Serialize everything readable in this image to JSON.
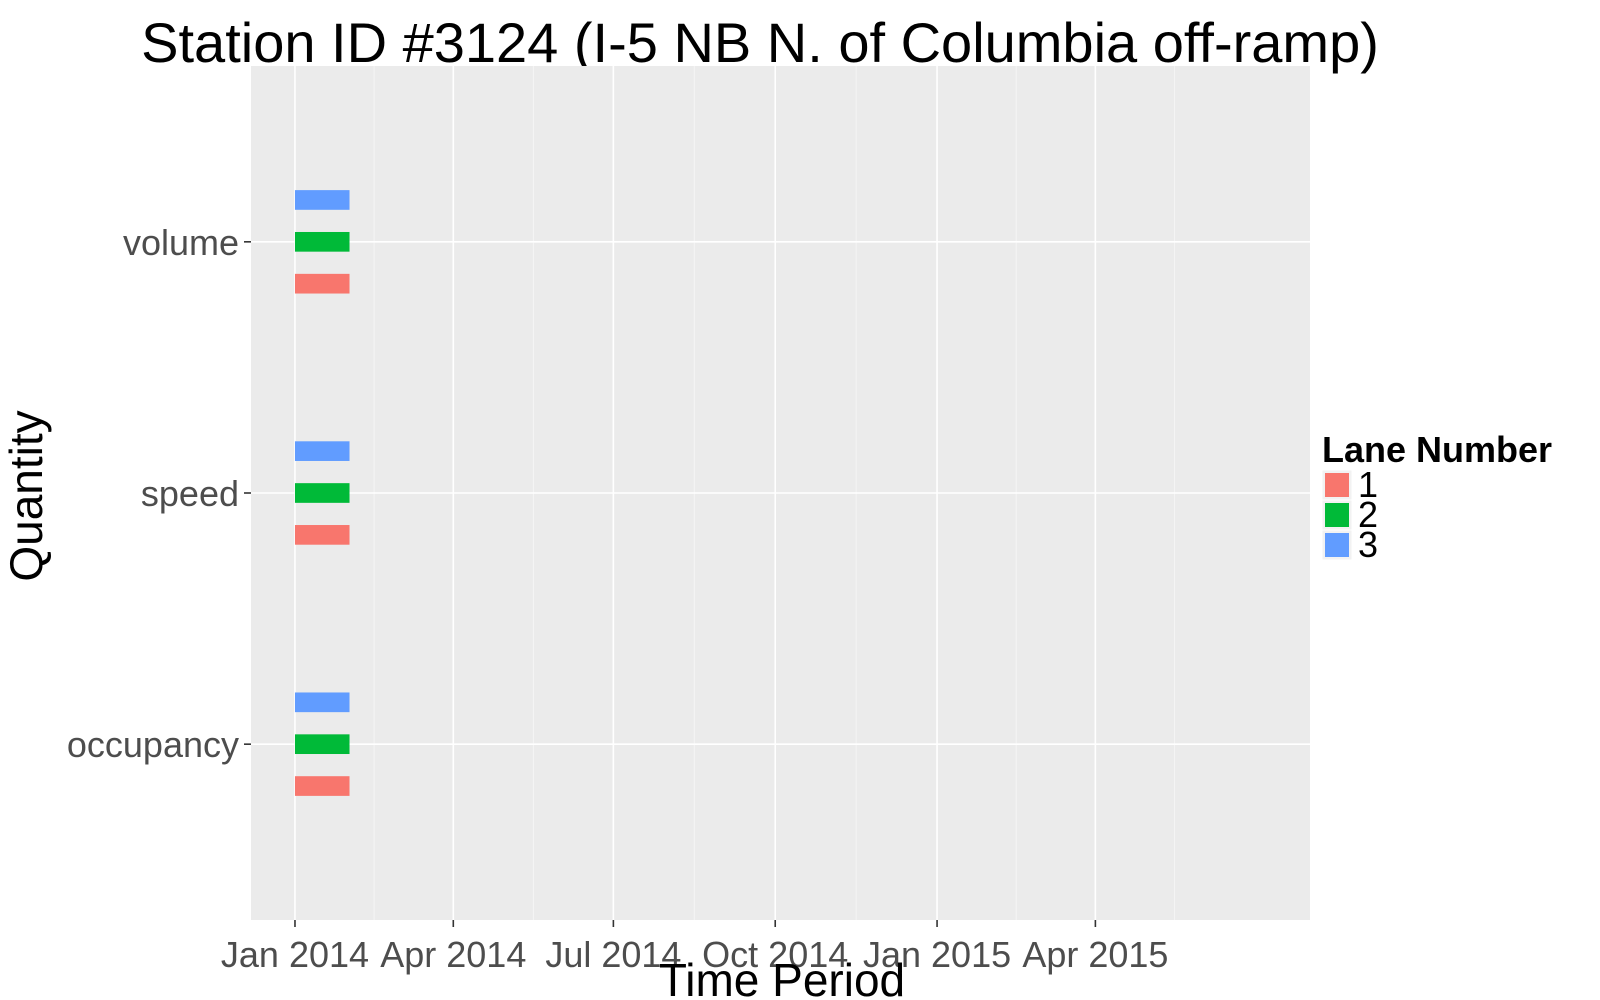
{
  "chart_data": {
    "type": "bar",
    "title": "Station ID #3124 (I-5 NB N. of Columbia off-ramp)",
    "xlabel": "Time Period",
    "ylabel": "Quantity",
    "x_ticks": [
      {
        "label": "Jan 2014",
        "date": "2014-01-01"
      },
      {
        "label": "Apr 2014",
        "date": "2014-04-01"
      },
      {
        "label": "Jul 2014",
        "date": "2014-07-01"
      },
      {
        "label": "Oct 2014",
        "date": "2014-10-01"
      },
      {
        "label": "Jan 2015",
        "date": "2015-01-01"
      },
      {
        "label": "Apr 2015",
        "date": "2015-04-01"
      }
    ],
    "x_range": [
      "2013-12-07",
      "2015-08-01"
    ],
    "categories": [
      "occupancy",
      "speed",
      "volume"
    ],
    "legend": {
      "title": "Lane Number",
      "placement": "right"
    },
    "series": [
      {
        "name": "1",
        "color": "#F8766D",
        "segments": [
          {
            "category": "occupancy",
            "start": "2014-01-01",
            "end": "2014-02-01"
          },
          {
            "category": "speed",
            "start": "2014-01-01",
            "end": "2014-02-01"
          },
          {
            "category": "volume",
            "start": "2014-01-01",
            "end": "2014-02-01"
          }
        ]
      },
      {
        "name": "2",
        "color": "#00BA38",
        "segments": [
          {
            "category": "occupancy",
            "start": "2014-01-01",
            "end": "2014-02-01"
          },
          {
            "category": "speed",
            "start": "2014-01-01",
            "end": "2014-02-01"
          },
          {
            "category": "volume",
            "start": "2014-01-01",
            "end": "2014-02-01"
          }
        ]
      },
      {
        "name": "3",
        "color": "#619CFF",
        "segments": [
          {
            "category": "occupancy",
            "start": "2014-01-01",
            "end": "2014-02-01"
          },
          {
            "category": "speed",
            "start": "2014-01-01",
            "end": "2014-02-01"
          },
          {
            "category": "volume",
            "start": "2014-01-01",
            "end": "2014-02-01"
          }
        ]
      }
    ],
    "grid": true,
    "panel_background": "#EBEBEB"
  }
}
